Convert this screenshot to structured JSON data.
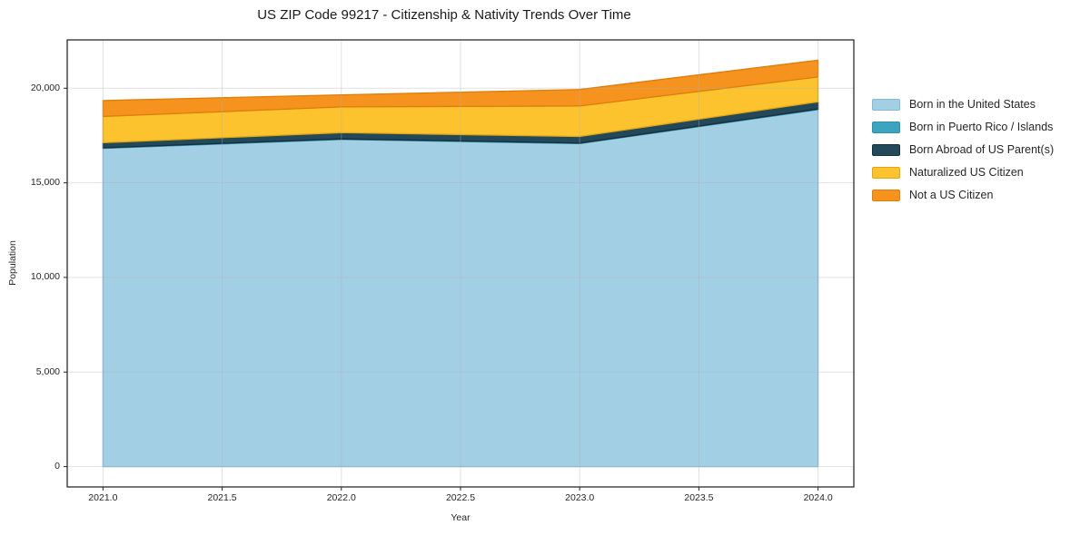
{
  "chart_data": {
    "type": "area",
    "stacked": true,
    "title": "US ZIP Code 99217 - Citizenship & Nativity Trends Over Time",
    "xlabel": "Year",
    "ylabel": "Population",
    "x": [
      2021,
      2022,
      2023,
      2024
    ],
    "series": [
      {
        "name": "Born in the United States",
        "color": "#A3CFE5",
        "edge": "#86B8D6",
        "values": [
          16820,
          17290,
          17070,
          18870
        ]
      },
      {
        "name": "Born in Puerto Rico / Islands",
        "color": "#3CA4BE",
        "edge": "#2E8FA8",
        "values": [
          30,
          30,
          30,
          30
        ]
      },
      {
        "name": "Born Abroad of US Parent(s)",
        "color": "#23485A",
        "edge": "#152F3C",
        "values": [
          270,
          330,
          350,
          380
        ]
      },
      {
        "name": "Naturalized US Citizen",
        "color": "#FCC32E",
        "edge": "#E0A714",
        "values": [
          1390,
          1360,
          1610,
          1320
        ]
      },
      {
        "name": "Not a US Citizen",
        "color": "#F6921E",
        "edge": "#DC7E0B",
        "values": [
          840,
          640,
          870,
          880
        ]
      }
    ],
    "totals": [
      19350,
      19650,
      19930,
      21480
    ],
    "xlim": [
      2020.85,
      2024.15
    ],
    "ylim": [
      -1074,
      22554
    ],
    "xticks": [
      "2021.0",
      "2021.5",
      "2022.0",
      "2022.5",
      "2023.0",
      "2023.5",
      "2024.0"
    ],
    "xtick_values": [
      2021,
      2021.5,
      2022,
      2022.5,
      2023,
      2023.5,
      2024
    ],
    "yticks": [
      "0",
      "5,000",
      "10,000",
      "15,000",
      "20,000"
    ],
    "ytick_values": [
      0,
      5000,
      10000,
      15000,
      20000
    ],
    "grid": true,
    "grid_color": "#e9e9e9",
    "spine_color": "#1a1a1a",
    "tick_color": "#262626",
    "legend_position": "right"
  }
}
